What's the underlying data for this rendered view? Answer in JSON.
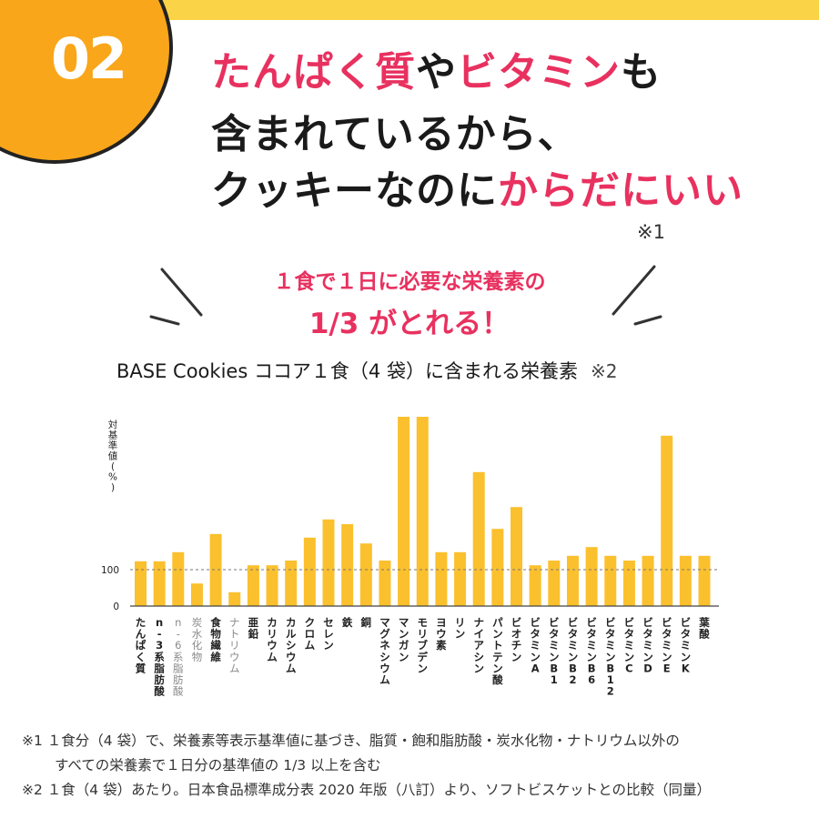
{
  "header": {
    "number": "02",
    "headline": {
      "line1": [
        {
          "text": "たんぱく質",
          "accent": true
        },
        {
          "text": "や",
          "accent": false
        },
        {
          "text": "ビタミン",
          "accent": true
        },
        {
          "text": "も",
          "accent": false
        }
      ],
      "line2": [
        {
          "text": "含まれているから、",
          "accent": false
        }
      ],
      "line3": [
        {
          "text": "クッキーなのに",
          "accent": false
        },
        {
          "text": "からだにいい",
          "accent": true
        }
      ]
    },
    "note_ref": "※1"
  },
  "lead": {
    "line1": "１食で１日に必要な栄養素の",
    "line2": "1/3 がとれる！"
  },
  "chart_heading": {
    "text": "BASE Cookies ココア１食（4 袋）に含まれる栄養素",
    "ref": "※2"
  },
  "colors": {
    "accent": "#e8315f",
    "badge": "#f9a61a",
    "top_band": "#fbd346",
    "bar": "#fbc02d",
    "text": "#1a1a1a"
  },
  "chart_data": {
    "type": "bar",
    "ylabel": "対基準値(%)",
    "yticks": [
      0,
      100
    ],
    "ylim": [
      0,
      520
    ],
    "reference_line": 100,
    "categories": [
      "たんぱく質",
      "n-3系脂肪酸",
      "n-6系脂肪酸",
      "炭水化物",
      "食物繊維",
      "ナトリウム",
      "亜鉛",
      "カリウム",
      "カルシウム",
      "クロム",
      "セレン",
      "鉄",
      "銅",
      "マグネシウム",
      "マンガン",
      "モリブデン",
      "ヨウ素",
      "リン",
      "ナイアシン",
      "パントテン酸",
      "ビオチン",
      "ビタミンA",
      "ビタミンB1",
      "ビタミンB2",
      "ビタミンB6",
      "ビタミンB12",
      "ビタミンC",
      "ビタミンD",
      "ビタミンE",
      "ビタミンK",
      "葉酸"
    ],
    "label_muted": [
      false,
      false,
      true,
      true,
      false,
      true,
      false,
      false,
      false,
      false,
      false,
      false,
      false,
      false,
      false,
      false,
      false,
      false,
      false,
      false,
      false,
      false,
      false,
      false,
      false,
      false,
      false,
      false,
      false,
      false,
      false
    ],
    "values": [
      123,
      123,
      148,
      62,
      198,
      38,
      112,
      112,
      125,
      188,
      238,
      225,
      172,
      125,
      520,
      520,
      148,
      148,
      368,
      212,
      272,
      112,
      125,
      138,
      162,
      138,
      125,
      138,
      468,
      138,
      138
    ]
  },
  "footnotes": {
    "n1_line1": "※1 １食分（4 袋）で、栄養素等表示基準値に基づき、脂質・飽和脂肪酸・炭水化物・ナトリウム以外の",
    "n1_line2": "すべての栄養素で１日分の基準値の 1/3 以上を含む",
    "n2": "※2 １食（4 袋）あたり。日本食品標準成分表 2020 年版（八訂）より、ソフトビスケットとの比較（同量）"
  }
}
